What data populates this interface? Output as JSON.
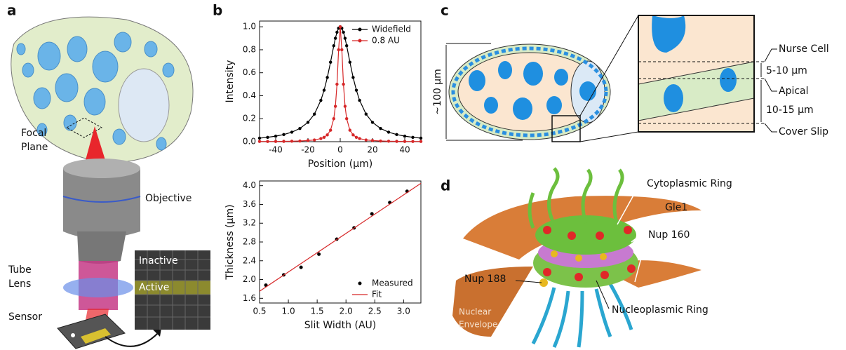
{
  "panels": {
    "a": {
      "letter": "a",
      "focal_plane": [
        "Focal",
        "Plane"
      ],
      "objective": "Objective",
      "tube_lens": [
        "Tube",
        "Lens"
      ],
      "sensor": "Sensor",
      "inactive": "Inactive",
      "active": "Active"
    },
    "b": {
      "letter": "b"
    },
    "c": {
      "letter": "c",
      "length": "~100 μm",
      "nurse_cell": "Nurse Cell",
      "band1": "5-10 μm",
      "apical": "Apical",
      "band2": "10-15 μm",
      "cover_slip": "Cover Slip"
    },
    "d": {
      "letter": "d",
      "cytoplasmic_ring": "Cytoplasmic Ring",
      "gle1": "Gle1",
      "nup160": "Nup 160",
      "nup188": "Nup 188",
      "nucleoplasmic_ring": "Nucleoplasmic Ring",
      "nuclear_envelope": [
        "Nuclear",
        "Envelope"
      ]
    }
  },
  "chart_data": [
    {
      "type": "line",
      "x_label": "Position (μm)",
      "y_label": "Intensity",
      "x": [
        -50,
        -45,
        -40,
        -35,
        -30,
        -25,
        -20,
        -16,
        -12,
        -10,
        -8,
        -6,
        -4,
        -3,
        -2,
        -1,
        0,
        1,
        2,
        3,
        4,
        6,
        8,
        10,
        12,
        16,
        20,
        25,
        30,
        35,
        40,
        45,
        50
      ],
      "series": [
        {
          "name": "Widefield",
          "color": "#000000",
          "values": [
            0.031,
            0.038,
            0.048,
            0.062,
            0.083,
            0.115,
            0.168,
            0.24,
            0.36,
            0.448,
            0.559,
            0.692,
            0.835,
            0.9,
            0.953,
            0.988,
            1,
            0.988,
            0.953,
            0.9,
            0.835,
            0.692,
            0.559,
            0.448,
            0.36,
            0.24,
            0.168,
            0.115,
            0.083,
            0.062,
            0.048,
            0.038,
            0.031
          ]
        },
        {
          "name": "0.8 AU",
          "color": "#d62728",
          "values": [
            0.002,
            0.002,
            0.002,
            0.003,
            0.004,
            0.006,
            0.01,
            0.015,
            0.027,
            0.038,
            0.059,
            0.1,
            0.2,
            0.308,
            0.5,
            0.8,
            1,
            0.8,
            0.5,
            0.308,
            0.2,
            0.1,
            0.059,
            0.038,
            0.027,
            0.015,
            0.01,
            0.006,
            0.004,
            0.003,
            0.002,
            0.002,
            0.002
          ]
        }
      ],
      "xlim": [
        -50,
        50
      ],
      "xticks": [
        -40,
        -20,
        0,
        20,
        40
      ],
      "ylim": [
        0,
        1.05
      ],
      "yticks": [
        {
          "value": 0,
          "label": "0.0"
        },
        0.2,
        0.4,
        0.6,
        0.8,
        {
          "value": 1,
          "label": "1.0"
        }
      ],
      "legend": "upper right"
    },
    {
      "type": "scatter",
      "x_label": "Slit Width (AU)",
      "y_label": "Thickness (μm)",
      "series": [
        {
          "name": "Measured",
          "color": "#000000",
          "line": false,
          "x": [
            0.61,
            0.92,
            1.22,
            1.53,
            1.84,
            2.14,
            2.45,
            2.76,
            3.06
          ],
          "values": [
            1.88,
            2.1,
            2.26,
            2.54,
            2.86,
            3.1,
            3.4,
            3.64,
            3.88
          ]
        },
        {
          "name": "Fit",
          "color": "#d62728",
          "line": true,
          "x": [
            0.5,
            3.3
          ],
          "values": [
            1.75,
            4.05
          ]
        }
      ],
      "xlim": [
        0.5,
        3.3
      ],
      "xticks": [
        0.5,
        {
          "value": 1,
          "label": "1.0"
        },
        1.5,
        {
          "value": 2,
          "label": "2.0"
        },
        2.5,
        {
          "value": 3,
          "label": "3.0"
        }
      ],
      "ylim": [
        1.5,
        4.1
      ],
      "yticks": [
        1.6,
        {
          "value": 2,
          "label": "2.0"
        },
        2.4,
        2.8,
        3.2,
        3.6,
        {
          "value": 4,
          "label": "4.0"
        }
      ],
      "legend": "lower right"
    }
  ]
}
